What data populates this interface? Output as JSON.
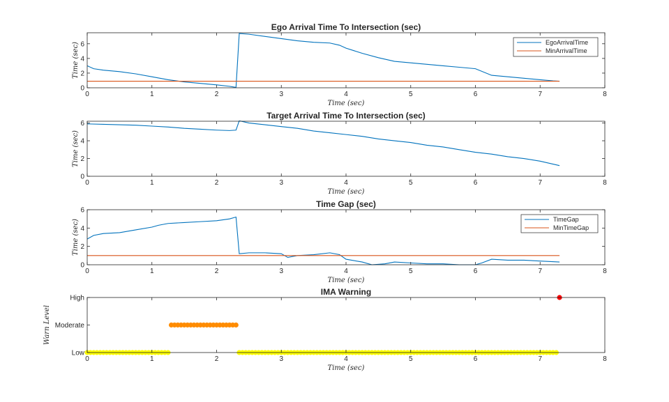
{
  "colors": {
    "series_blue": "#0072BD",
    "series_orange": "#D95319",
    "warn_low": "#FFFF00",
    "warn_moderate": "#FF8C00",
    "warn_high": "#FF0000",
    "axis": "#262626"
  },
  "chart_data": [
    {
      "type": "line",
      "title": "Ego Arrival Time To Intersection (sec)",
      "xlabel": "Time (sec)",
      "ylabel": "Time (sec)",
      "xlim": [
        0,
        8
      ],
      "ylim": [
        0,
        7.5
      ],
      "xticks": [
        0,
        1,
        2,
        3,
        4,
        5,
        6,
        7,
        8
      ],
      "yticks": [
        0,
        2,
        4,
        6
      ],
      "grid": false,
      "legend": "top-right",
      "series": [
        {
          "name": "EgoArrivalTime",
          "color": "#0072BD",
          "x": [
            0,
            0.1,
            0.25,
            0.5,
            0.75,
            1.0,
            1.25,
            1.5,
            1.75,
            2.0,
            2.2,
            2.3,
            2.35,
            2.5,
            2.75,
            3.0,
            3.25,
            3.5,
            3.75,
            3.9,
            4.0,
            4.25,
            4.5,
            4.75,
            5.0,
            5.25,
            5.5,
            5.75,
            6.0,
            6.25,
            6.5,
            6.75,
            7.0,
            7.2,
            7.3
          ],
          "y": [
            3.0,
            2.6,
            2.4,
            2.2,
            1.9,
            1.5,
            1.1,
            0.8,
            0.6,
            0.4,
            0.2,
            0.05,
            7.4,
            7.3,
            7.0,
            6.7,
            6.4,
            6.2,
            6.1,
            5.8,
            5.4,
            4.7,
            4.1,
            3.6,
            3.4,
            3.2,
            3.0,
            2.8,
            2.6,
            1.7,
            1.5,
            1.3,
            1.1,
            0.95,
            0.9
          ]
        },
        {
          "name": "MinArrivalTime",
          "color": "#D95319",
          "x": [
            0,
            7.3
          ],
          "y": [
            0.9,
            0.9
          ]
        }
      ]
    },
    {
      "type": "line",
      "title": "Target Arrival Time To Intersection (sec)",
      "xlabel": "Time (sec)",
      "ylabel": "Time (sec)",
      "xlim": [
        0,
        8
      ],
      "ylim": [
        0,
        6.2
      ],
      "xticks": [
        0,
        1,
        2,
        3,
        4,
        5,
        6,
        7,
        8
      ],
      "yticks": [
        0,
        2,
        4,
        6
      ],
      "grid": false,
      "series": [
        {
          "color": "#0072BD",
          "x": [
            0,
            0.25,
            0.5,
            0.75,
            1.0,
            1.25,
            1.5,
            1.75,
            2.0,
            2.2,
            2.3,
            2.35,
            2.5,
            2.75,
            3.0,
            3.25,
            3.5,
            3.75,
            4.0,
            4.25,
            4.5,
            4.75,
            5.0,
            5.25,
            5.5,
            5.75,
            6.0,
            6.25,
            6.5,
            6.75,
            7.0,
            7.3
          ],
          "y": [
            5.9,
            5.85,
            5.8,
            5.75,
            5.65,
            5.55,
            5.4,
            5.3,
            5.2,
            5.15,
            5.2,
            6.25,
            6.0,
            5.8,
            5.6,
            5.4,
            5.1,
            4.9,
            4.7,
            4.5,
            4.2,
            4.0,
            3.8,
            3.5,
            3.3,
            3.0,
            2.7,
            2.5,
            2.2,
            2.0,
            1.7,
            1.2
          ]
        }
      ]
    },
    {
      "type": "line",
      "title": "Time Gap (sec)",
      "xlabel": "Time (sec)",
      "ylabel": "Time (sec)",
      "xlim": [
        0,
        8
      ],
      "ylim": [
        0,
        6
      ],
      "xticks": [
        0,
        1,
        2,
        3,
        4,
        5,
        6,
        7,
        8
      ],
      "yticks": [
        0,
        2,
        4,
        6
      ],
      "grid": false,
      "legend": "top-right",
      "series": [
        {
          "name": "TimeGap",
          "color": "#0072BD",
          "x": [
            0,
            0.1,
            0.25,
            0.5,
            0.75,
            1.0,
            1.1,
            1.25,
            1.5,
            1.75,
            2.0,
            2.2,
            2.3,
            2.35,
            2.5,
            2.75,
            3.0,
            3.1,
            3.25,
            3.5,
            3.75,
            3.9,
            4.0,
            4.25,
            4.4,
            4.6,
            4.75,
            5.0,
            5.25,
            5.5,
            5.75,
            6.0,
            6.1,
            6.25,
            6.5,
            6.75,
            7.0,
            7.3
          ],
          "y": [
            2.8,
            3.2,
            3.4,
            3.5,
            3.8,
            4.1,
            4.3,
            4.5,
            4.6,
            4.7,
            4.8,
            5.0,
            5.2,
            1.2,
            1.3,
            1.3,
            1.2,
            0.8,
            1.0,
            1.1,
            1.3,
            1.1,
            0.6,
            0.3,
            0.0,
            0.1,
            0.3,
            0.2,
            0.1,
            0.1,
            0.0,
            0.0,
            0.2,
            0.6,
            0.5,
            0.5,
            0.4,
            0.3
          ]
        },
        {
          "name": "MinTimeGap",
          "color": "#D95319",
          "x": [
            0,
            7.3
          ],
          "y": [
            1.0,
            1.0
          ]
        }
      ]
    },
    {
      "type": "scatter",
      "title": "IMA Warning",
      "xlabel": "Time (sec)",
      "ylabel": "Warn Level",
      "xlim": [
        0,
        8
      ],
      "xticks": [
        0,
        1,
        2,
        3,
        4,
        5,
        6,
        7,
        8
      ],
      "ycategories": [
        "Low",
        "Moderate",
        "High"
      ],
      "grid": false,
      "series": [
        {
          "level": "Low",
          "color": "#FFFF00",
          "x_ranges": [
            [
              0,
              1.25
            ],
            [
              2.35,
              7.25
            ]
          ],
          "step": 0.05
        },
        {
          "level": "Moderate",
          "color": "#FF8C00",
          "x_ranges": [
            [
              1.3,
              2.3
            ]
          ],
          "step": 0.05
        },
        {
          "level": "High",
          "color": "#FF0000",
          "x": [
            7.3
          ]
        }
      ]
    }
  ]
}
